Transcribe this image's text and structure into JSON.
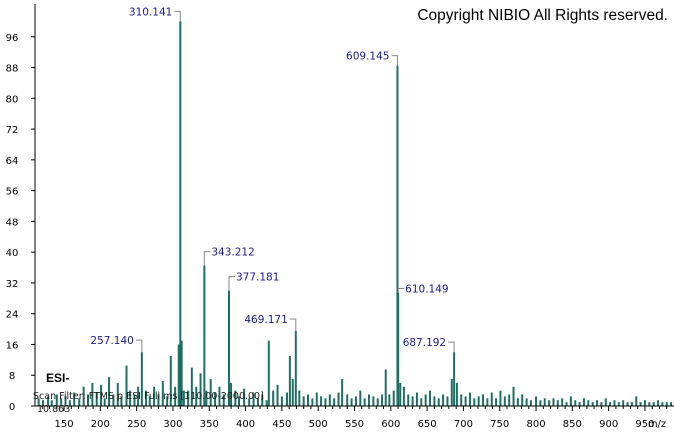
{
  "copyright": "Copyright NIBIO All Rights reserved.",
  "ion_mode": "ESI-",
  "scan_filter": "Scan Filter: FTMS  p ESI Full ms [110.00-2000.00]",
  "rt_label": "10.863",
  "colors": {
    "peak": "#1f6e63",
    "axis": "#000000",
    "label": "#1a1a8c"
  },
  "chart_data": {
    "type": "bar",
    "title": "",
    "xlabel": "m/z",
    "ylabel": "",
    "xlim": [
      110,
      990
    ],
    "ylim": [
      0,
      104
    ],
    "xticks": [
      150,
      200,
      250,
      300,
      350,
      400,
      450,
      500,
      550,
      600,
      650,
      700,
      750,
      800,
      850,
      900,
      950
    ],
    "yticks": [
      0,
      8,
      16,
      24,
      32,
      40,
      48,
      56,
      64,
      72,
      80,
      88,
      96
    ],
    "labeled_peaks": [
      {
        "mz": 310.141,
        "label": "310.141",
        "intensity": 100
      },
      {
        "mz": 609.145,
        "label": "609.145",
        "intensity": 88.5
      },
      {
        "mz": 343.212,
        "label": "343.212",
        "intensity": 36.5
      },
      {
        "mz": 377.181,
        "label": "377.181",
        "intensity": 30
      },
      {
        "mz": 610.149,
        "label": "610.149",
        "intensity": 29.5
      },
      {
        "mz": 469.171,
        "label": "469.171",
        "intensity": 19.5
      },
      {
        "mz": 257.14,
        "label": "257.140",
        "intensity": 14
      },
      {
        "mz": 687.192,
        "label": "687.192",
        "intensity": 14
      }
    ],
    "minor_peaks": [
      [
        115,
        2
      ],
      [
        121,
        1.5
      ],
      [
        128,
        2.5
      ],
      [
        133,
        1.5
      ],
      [
        140,
        3
      ],
      [
        146,
        2
      ],
      [
        152,
        2.5
      ],
      [
        158,
        1.5
      ],
      [
        164,
        3.5
      ],
      [
        171,
        2
      ],
      [
        177,
        5
      ],
      [
        183,
        3
      ],
      [
        189,
        6
      ],
      [
        195,
        3.5
      ],
      [
        201,
        5.5
      ],
      [
        206,
        2
      ],
      [
        212,
        7.5
      ],
      [
        218,
        3
      ],
      [
        224,
        6
      ],
      [
        229,
        2.5
      ],
      [
        236,
        10.5
      ],
      [
        241,
        4
      ],
      [
        247,
        3
      ],
      [
        252,
        5
      ],
      [
        263,
        4
      ],
      [
        268,
        2.5
      ],
      [
        274,
        5
      ],
      [
        280,
        3
      ],
      [
        286,
        6.5
      ],
      [
        292,
        2.5
      ],
      [
        297,
        13
      ],
      [
        303,
        5
      ],
      [
        308,
        16
      ],
      [
        312,
        17
      ],
      [
        315,
        4
      ],
      [
        321,
        4
      ],
      [
        326,
        10
      ],
      [
        332,
        5
      ],
      [
        338,
        8.5
      ],
      [
        346,
        4
      ],
      [
        352,
        7
      ],
      [
        358,
        3.5
      ],
      [
        364,
        5
      ],
      [
        370,
        3
      ],
      [
        380,
        6
      ],
      [
        386,
        4
      ],
      [
        391,
        2.5
      ],
      [
        398,
        4.5
      ],
      [
        405,
        2
      ],
      [
        411,
        3.5
      ],
      [
        417,
        2
      ],
      [
        423,
        3
      ],
      [
        429,
        1.5
      ],
      [
        432,
        17
      ],
      [
        438,
        4
      ],
      [
        444,
        5.5
      ],
      [
        450,
        2.5
      ],
      [
        457,
        3.5
      ],
      [
        461,
        13
      ],
      [
        465,
        7
      ],
      [
        474,
        4
      ],
      [
        480,
        2.5
      ],
      [
        486,
        3
      ],
      [
        492,
        2
      ],
      [
        498,
        3.5
      ],
      [
        504,
        2.5
      ],
      [
        510,
        2
      ],
      [
        516,
        3
      ],
      [
        522,
        2
      ],
      [
        528,
        3.5
      ],
      [
        533,
        7
      ],
      [
        540,
        3
      ],
      [
        546,
        2
      ],
      [
        552,
        2.5
      ],
      [
        558,
        4
      ],
      [
        564,
        2
      ],
      [
        570,
        3
      ],
      [
        576,
        2.5
      ],
      [
        582,
        2
      ],
      [
        588,
        3
      ],
      [
        593,
        9.5
      ],
      [
        598,
        3
      ],
      [
        604,
        4
      ],
      [
        613,
        6
      ],
      [
        618,
        5
      ],
      [
        624,
        3
      ],
      [
        630,
        2.5
      ],
      [
        636,
        3.5
      ],
      [
        642,
        2
      ],
      [
        648,
        3
      ],
      [
        654,
        4
      ],
      [
        660,
        2.5
      ],
      [
        666,
        2
      ],
      [
        672,
        3
      ],
      [
        678,
        2.5
      ],
      [
        684,
        7
      ],
      [
        691,
        6
      ],
      [
        697,
        3
      ],
      [
        703,
        2.5
      ],
      [
        709,
        3.5
      ],
      [
        715,
        2
      ],
      [
        721,
        2.5
      ],
      [
        727,
        3
      ],
      [
        733,
        2
      ],
      [
        739,
        3.5
      ],
      [
        745,
        2
      ],
      [
        751,
        4
      ],
      [
        757,
        2.5
      ],
      [
        763,
        3
      ],
      [
        769,
        5
      ],
      [
        775,
        2
      ],
      [
        781,
        3
      ],
      [
        787,
        2
      ],
      [
        793,
        1.5
      ],
      [
        800,
        2.5
      ],
      [
        806,
        1.5
      ],
      [
        812,
        2
      ],
      [
        818,
        1.5
      ],
      [
        824,
        2
      ],
      [
        830,
        1.5
      ],
      [
        836,
        2
      ],
      [
        842,
        1
      ],
      [
        848,
        2.5
      ],
      [
        854,
        1.5
      ],
      [
        860,
        1
      ],
      [
        866,
        2
      ],
      [
        872,
        1.5
      ],
      [
        878,
        1
      ],
      [
        884,
        1.5
      ],
      [
        890,
        1
      ],
      [
        896,
        2
      ],
      [
        902,
        1
      ],
      [
        908,
        1.5
      ],
      [
        914,
        1
      ],
      [
        920,
        1.5
      ],
      [
        926,
        1
      ],
      [
        932,
        1
      ],
      [
        938,
        2.5
      ],
      [
        944,
        1
      ],
      [
        950,
        1.5
      ],
      [
        956,
        1
      ],
      [
        962,
        1
      ],
      [
        968,
        1.5
      ],
      [
        974,
        1
      ],
      [
        980,
        1
      ],
      [
        986,
        1
      ]
    ]
  }
}
